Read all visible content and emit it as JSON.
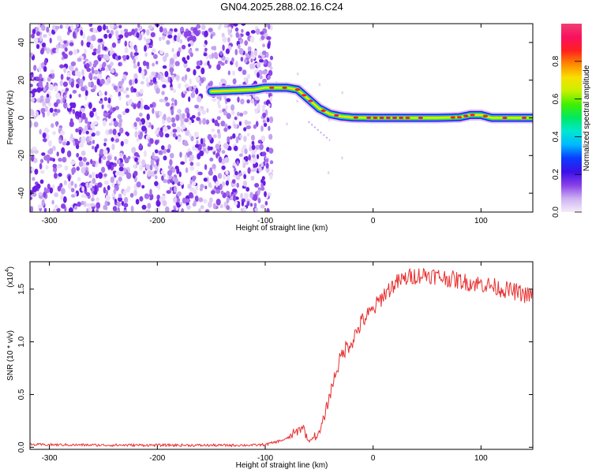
{
  "title": "GN04.2025.288.02.16.C24",
  "chart_data": [
    {
      "type": "heatmap",
      "name": "spectrogram",
      "xlabel": "Height of straight line (km)",
      "ylabel": "Frequency (Hz)",
      "xlim": [
        -318,
        148
      ],
      "ylim": [
        -50,
        50
      ],
      "xticks": [
        -300,
        -200,
        -100,
        0,
        100
      ],
      "yticks": [
        -40,
        -20,
        0,
        20,
        40
      ],
      "noise_region_x": [
        -318,
        -100
      ],
      "carrier_track": {
        "x": [
          -150,
          -110,
          -100,
          -90,
          -80,
          -70,
          -60,
          -50,
          -40,
          -30,
          -20,
          0,
          20,
          40,
          60,
          80,
          90,
          100,
          110,
          120,
          148
        ],
        "y": [
          14,
          15,
          16,
          16,
          16,
          15,
          10,
          5,
          2,
          0.8,
          0.2,
          0,
          0,
          0,
          0,
          0.3,
          1.5,
          1.5,
          0,
          0,
          0
        ]
      },
      "colorbar": {
        "label": "Normalized spectral amplitude",
        "range": [
          0,
          1
        ],
        "ticks": [
          0.0,
          0.2,
          0.4,
          0.6,
          0.8
        ],
        "tick_labels": [
          "0.0",
          "0.2",
          "0.4",
          "0.6",
          "0.8"
        ],
        "colors": [
          "#f4ecf8",
          "#cdb3f2",
          "#8840e8",
          "#3c10e8",
          "#0a3cff",
          "#00b8ff",
          "#00e8d0",
          "#00e864",
          "#40f000",
          "#c8f000",
          "#f8e000",
          "#ff8800",
          "#ff2020",
          "#f81060",
          "#f04070"
        ]
      }
    },
    {
      "type": "line",
      "name": "snr",
      "xlabel": "Height of straight line (km)",
      "ylabel": "SNR (10 * v/v)",
      "scale_label": "(x10",
      "scale_exponent": "4",
      "scale_close": ")",
      "xlim": [
        -318,
        148
      ],
      "ylim": [
        -0.02,
        1.76
      ],
      "xticks": [
        -300,
        -200,
        -100,
        0,
        100
      ],
      "yticks": [
        0.0,
        0.5,
        1.0,
        1.5
      ],
      "ytick_labels": [
        "0.0",
        "0.5",
        "1.0",
        "1.5"
      ],
      "color": "#e83030",
      "x": [
        -318,
        -250,
        -200,
        -150,
        -110,
        -100,
        -90,
        -80,
        -75,
        -70,
        -65,
        -60,
        -55,
        -50,
        -45,
        -40,
        -35,
        -30,
        -25,
        -20,
        -15,
        -10,
        -5,
        0,
        10,
        20,
        30,
        35,
        40,
        50,
        60,
        70,
        80,
        90,
        100,
        110,
        120,
        130,
        140,
        148
      ],
      "y": [
        0.025,
        0.02,
        0.02,
        0.018,
        0.02,
        0.025,
        0.05,
        0.08,
        0.12,
        0.15,
        0.2,
        0.05,
        0.1,
        0.12,
        0.3,
        0.5,
        0.7,
        0.85,
        0.95,
        1.0,
        1.1,
        1.2,
        1.25,
        1.3,
        1.45,
        1.55,
        1.6,
        1.62,
        1.63,
        1.64,
        1.62,
        1.6,
        1.58,
        1.56,
        1.55,
        1.53,
        1.5,
        1.48,
        1.45,
        1.43
      ],
      "noise_amplitude": 0.06
    }
  ]
}
